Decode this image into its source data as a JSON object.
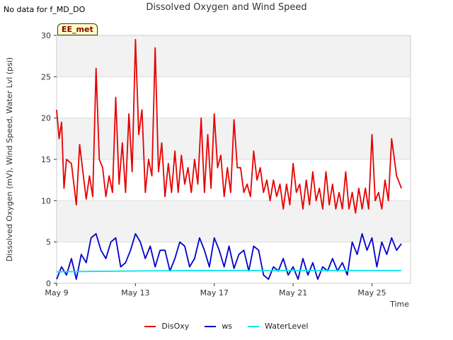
{
  "nodata_text": "No data for f_MD_DO",
  "badge": "EE_met",
  "chart_data": {
    "type": "line",
    "title": "Dissolved Oxygen and Wind Speed",
    "xlabel": "Time",
    "ylabel": "Dissolved Oxygen (mV), Wind Speed, Water Lvl (psi)",
    "x_unit": "date",
    "xlim": [
      "2023-05-09",
      "2023-05-26T23:00"
    ],
    "ylim": [
      0,
      30
    ],
    "yticks": [
      0,
      5,
      10,
      15,
      20,
      25,
      30
    ],
    "xticks": [
      {
        "date": "2023-05-09",
        "label": "May 9"
      },
      {
        "date": "2023-05-13",
        "label": "May 13"
      },
      {
        "date": "2023-05-17",
        "label": "May 17"
      },
      {
        "date": "2023-05-21",
        "label": "May 21"
      },
      {
        "date": "2023-05-25",
        "label": "May 25"
      }
    ],
    "grid": true,
    "legend_position": "bottom",
    "series": [
      {
        "name": "DisOxy",
        "color": "#e60000",
        "points": [
          [
            "2023-05-09T00:00",
            21.0
          ],
          [
            "2023-05-09T03:00",
            17.5
          ],
          [
            "2023-05-09T06:00",
            19.5
          ],
          [
            "2023-05-09T09:00",
            11.5
          ],
          [
            "2023-05-09T12:00",
            15.0
          ],
          [
            "2023-05-09T18:00",
            14.5
          ],
          [
            "2023-05-10T00:00",
            9.5
          ],
          [
            "2023-05-10T04:00",
            16.8
          ],
          [
            "2023-05-10T08:00",
            13.5
          ],
          [
            "2023-05-10T12:00",
            10.2
          ],
          [
            "2023-05-10T16:00",
            13.0
          ],
          [
            "2023-05-10T20:00",
            10.5
          ],
          [
            "2023-05-11T00:00",
            26.0
          ],
          [
            "2023-05-11T04:00",
            15.0
          ],
          [
            "2023-05-11T08:00",
            14.0
          ],
          [
            "2023-05-11T12:00",
            10.5
          ],
          [
            "2023-05-11T16:00",
            13.0
          ],
          [
            "2023-05-11T20:00",
            11.0
          ],
          [
            "2023-05-12T00:00",
            22.5
          ],
          [
            "2023-05-12T04:00",
            12.0
          ],
          [
            "2023-05-12T08:00",
            17.0
          ],
          [
            "2023-05-12T12:00",
            11.0
          ],
          [
            "2023-05-12T16:00",
            20.5
          ],
          [
            "2023-05-12T20:00",
            13.5
          ],
          [
            "2023-05-13T00:00",
            29.5
          ],
          [
            "2023-05-13T04:00",
            18.0
          ],
          [
            "2023-05-13T08:00",
            21.0
          ],
          [
            "2023-05-13T12:00",
            11.0
          ],
          [
            "2023-05-13T16:00",
            15.0
          ],
          [
            "2023-05-13T20:00",
            13.0
          ],
          [
            "2023-05-14T00:00",
            28.5
          ],
          [
            "2023-05-14T04:00",
            13.5
          ],
          [
            "2023-05-14T08:00",
            17.0
          ],
          [
            "2023-05-14T12:00",
            10.5
          ],
          [
            "2023-05-14T16:00",
            14.5
          ],
          [
            "2023-05-14T20:00",
            11.0
          ],
          [
            "2023-05-15T00:00",
            16.0
          ],
          [
            "2023-05-15T04:00",
            11.0
          ],
          [
            "2023-05-15T08:00",
            15.5
          ],
          [
            "2023-05-15T12:00",
            12.0
          ],
          [
            "2023-05-15T16:00",
            14.0
          ],
          [
            "2023-05-15T20:00",
            11.0
          ],
          [
            "2023-05-16T00:00",
            15.0
          ],
          [
            "2023-05-16T04:00",
            12.0
          ],
          [
            "2023-05-16T08:00",
            20.0
          ],
          [
            "2023-05-16T12:00",
            11.0
          ],
          [
            "2023-05-16T16:00",
            18.0
          ],
          [
            "2023-05-16T20:00",
            11.5
          ],
          [
            "2023-05-17T00:00",
            20.5
          ],
          [
            "2023-05-17T04:00",
            14.0
          ],
          [
            "2023-05-17T08:00",
            15.5
          ],
          [
            "2023-05-17T12:00",
            10.5
          ],
          [
            "2023-05-17T16:00",
            14.0
          ],
          [
            "2023-05-17T20:00",
            11.0
          ],
          [
            "2023-05-18T00:00",
            19.8
          ],
          [
            "2023-05-18T04:00",
            14.0
          ],
          [
            "2023-05-18T08:00",
            14.0
          ],
          [
            "2023-05-18T12:00",
            11.0
          ],
          [
            "2023-05-18T16:00",
            12.0
          ],
          [
            "2023-05-18T20:00",
            10.5
          ],
          [
            "2023-05-19T00:00",
            16.0
          ],
          [
            "2023-05-19T04:00",
            12.5
          ],
          [
            "2023-05-19T08:00",
            14.0
          ],
          [
            "2023-05-19T12:00",
            11.0
          ],
          [
            "2023-05-19T16:00",
            12.5
          ],
          [
            "2023-05-19T20:00",
            10.0
          ],
          [
            "2023-05-20T00:00",
            12.5
          ],
          [
            "2023-05-20T04:00",
            10.5
          ],
          [
            "2023-05-20T08:00",
            12.0
          ],
          [
            "2023-05-20T12:00",
            9.0
          ],
          [
            "2023-05-20T16:00",
            12.0
          ],
          [
            "2023-05-20T20:00",
            9.5
          ],
          [
            "2023-05-21T00:00",
            14.5
          ],
          [
            "2023-05-21T04:00",
            11.0
          ],
          [
            "2023-05-21T08:00",
            12.0
          ],
          [
            "2023-05-21T12:00",
            9.0
          ],
          [
            "2023-05-21T16:00",
            12.5
          ],
          [
            "2023-05-21T20:00",
            9.5
          ],
          [
            "2023-05-22T00:00",
            13.5
          ],
          [
            "2023-05-22T04:00",
            10.0
          ],
          [
            "2023-05-22T08:00",
            11.5
          ],
          [
            "2023-05-22T12:00",
            9.0
          ],
          [
            "2023-05-22T16:00",
            13.5
          ],
          [
            "2023-05-22T20:00",
            9.5
          ],
          [
            "2023-05-23T00:00",
            12.0
          ],
          [
            "2023-05-23T04:00",
            9.0
          ],
          [
            "2023-05-23T08:00",
            11.0
          ],
          [
            "2023-05-23T12:00",
            9.0
          ],
          [
            "2023-05-23T16:00",
            13.5
          ],
          [
            "2023-05-23T20:00",
            9.0
          ],
          [
            "2023-05-24T00:00",
            11.0
          ],
          [
            "2023-05-24T04:00",
            8.5
          ],
          [
            "2023-05-24T08:00",
            11.5
          ],
          [
            "2023-05-24T12:00",
            9.0
          ],
          [
            "2023-05-24T16:00",
            11.5
          ],
          [
            "2023-05-24T20:00",
            9.0
          ],
          [
            "2023-05-25T00:00",
            18.0
          ],
          [
            "2023-05-25T04:00",
            10.0
          ],
          [
            "2023-05-25T08:00",
            11.0
          ],
          [
            "2023-05-25T12:00",
            9.0
          ],
          [
            "2023-05-25T16:00",
            12.5
          ],
          [
            "2023-05-25T20:00",
            10.0
          ],
          [
            "2023-05-26T00:00",
            17.5
          ],
          [
            "2023-05-26T06:00",
            13.0
          ],
          [
            "2023-05-26T12:00",
            11.5
          ]
        ]
      },
      {
        "name": "ws",
        "color": "#0000cc",
        "points": [
          [
            "2023-05-09T00:00",
            0.5
          ],
          [
            "2023-05-09T06:00",
            2.0
          ],
          [
            "2023-05-09T12:00",
            1.0
          ],
          [
            "2023-05-09T18:00",
            3.0
          ],
          [
            "2023-05-10T00:00",
            0.5
          ],
          [
            "2023-05-10T06:00",
            3.5
          ],
          [
            "2023-05-10T12:00",
            2.5
          ],
          [
            "2023-05-10T18:00",
            5.5
          ],
          [
            "2023-05-11T00:00",
            6.0
          ],
          [
            "2023-05-11T06:00",
            4.0
          ],
          [
            "2023-05-11T12:00",
            3.0
          ],
          [
            "2023-05-11T18:00",
            5.0
          ],
          [
            "2023-05-12T00:00",
            5.5
          ],
          [
            "2023-05-12T06:00",
            2.0
          ],
          [
            "2023-05-12T12:00",
            2.5
          ],
          [
            "2023-05-12T18:00",
            4.0
          ],
          [
            "2023-05-13T00:00",
            6.0
          ],
          [
            "2023-05-13T06:00",
            5.0
          ],
          [
            "2023-05-13T12:00",
            3.0
          ],
          [
            "2023-05-13T18:00",
            4.5
          ],
          [
            "2023-05-14T00:00",
            2.0
          ],
          [
            "2023-05-14T06:00",
            4.0
          ],
          [
            "2023-05-14T12:00",
            4.0
          ],
          [
            "2023-05-14T18:00",
            1.5
          ],
          [
            "2023-05-15T00:00",
            3.0
          ],
          [
            "2023-05-15T06:00",
            5.0
          ],
          [
            "2023-05-15T12:00",
            4.5
          ],
          [
            "2023-05-15T18:00",
            2.0
          ],
          [
            "2023-05-16T00:00",
            3.0
          ],
          [
            "2023-05-16T06:00",
            5.5
          ],
          [
            "2023-05-16T12:00",
            4.0
          ],
          [
            "2023-05-16T18:00",
            2.0
          ],
          [
            "2023-05-17T00:00",
            5.5
          ],
          [
            "2023-05-17T06:00",
            4.0
          ],
          [
            "2023-05-17T12:00",
            2.0
          ],
          [
            "2023-05-17T18:00",
            4.5
          ],
          [
            "2023-05-18T00:00",
            1.8
          ],
          [
            "2023-05-18T06:00",
            3.5
          ],
          [
            "2023-05-18T12:00",
            4.0
          ],
          [
            "2023-05-18T18:00",
            1.5
          ],
          [
            "2023-05-19T00:00",
            4.5
          ],
          [
            "2023-05-19T06:00",
            4.0
          ],
          [
            "2023-05-19T12:00",
            1.0
          ],
          [
            "2023-05-19T18:00",
            0.5
          ],
          [
            "2023-05-20T00:00",
            2.0
          ],
          [
            "2023-05-20T06:00",
            1.5
          ],
          [
            "2023-05-20T12:00",
            3.0
          ],
          [
            "2023-05-20T18:00",
            1.0
          ],
          [
            "2023-05-21T00:00",
            2.0
          ],
          [
            "2023-05-21T06:00",
            0.5
          ],
          [
            "2023-05-21T12:00",
            3.0
          ],
          [
            "2023-05-21T18:00",
            1.0
          ],
          [
            "2023-05-22T00:00",
            2.5
          ],
          [
            "2023-05-22T06:00",
            0.5
          ],
          [
            "2023-05-22T12:00",
            2.0
          ],
          [
            "2023-05-22T18:00",
            1.5
          ],
          [
            "2023-05-23T00:00",
            3.0
          ],
          [
            "2023-05-23T06:00",
            1.5
          ],
          [
            "2023-05-23T12:00",
            2.5
          ],
          [
            "2023-05-23T18:00",
            1.0
          ],
          [
            "2023-05-24T00:00",
            5.0
          ],
          [
            "2023-05-24T06:00",
            3.5
          ],
          [
            "2023-05-24T12:00",
            6.0
          ],
          [
            "2023-05-24T18:00",
            4.0
          ],
          [
            "2023-05-25T00:00",
            5.5
          ],
          [
            "2023-05-25T06:00",
            2.0
          ],
          [
            "2023-05-25T12:00",
            5.0
          ],
          [
            "2023-05-25T18:00",
            3.5
          ],
          [
            "2023-05-26T00:00",
            5.5
          ],
          [
            "2023-05-26T06:00",
            4.0
          ],
          [
            "2023-05-26T12:00",
            4.8
          ]
        ]
      },
      {
        "name": "WaterLevel",
        "color": "#00e5ee",
        "points": [
          [
            "2023-05-09T00:00",
            1.4
          ],
          [
            "2023-05-13T00:00",
            1.5
          ],
          [
            "2023-05-17T00:00",
            1.55
          ],
          [
            "2023-05-21T00:00",
            1.55
          ],
          [
            "2023-05-25T00:00",
            1.55
          ],
          [
            "2023-05-26T12:00",
            1.55
          ]
        ]
      }
    ]
  }
}
